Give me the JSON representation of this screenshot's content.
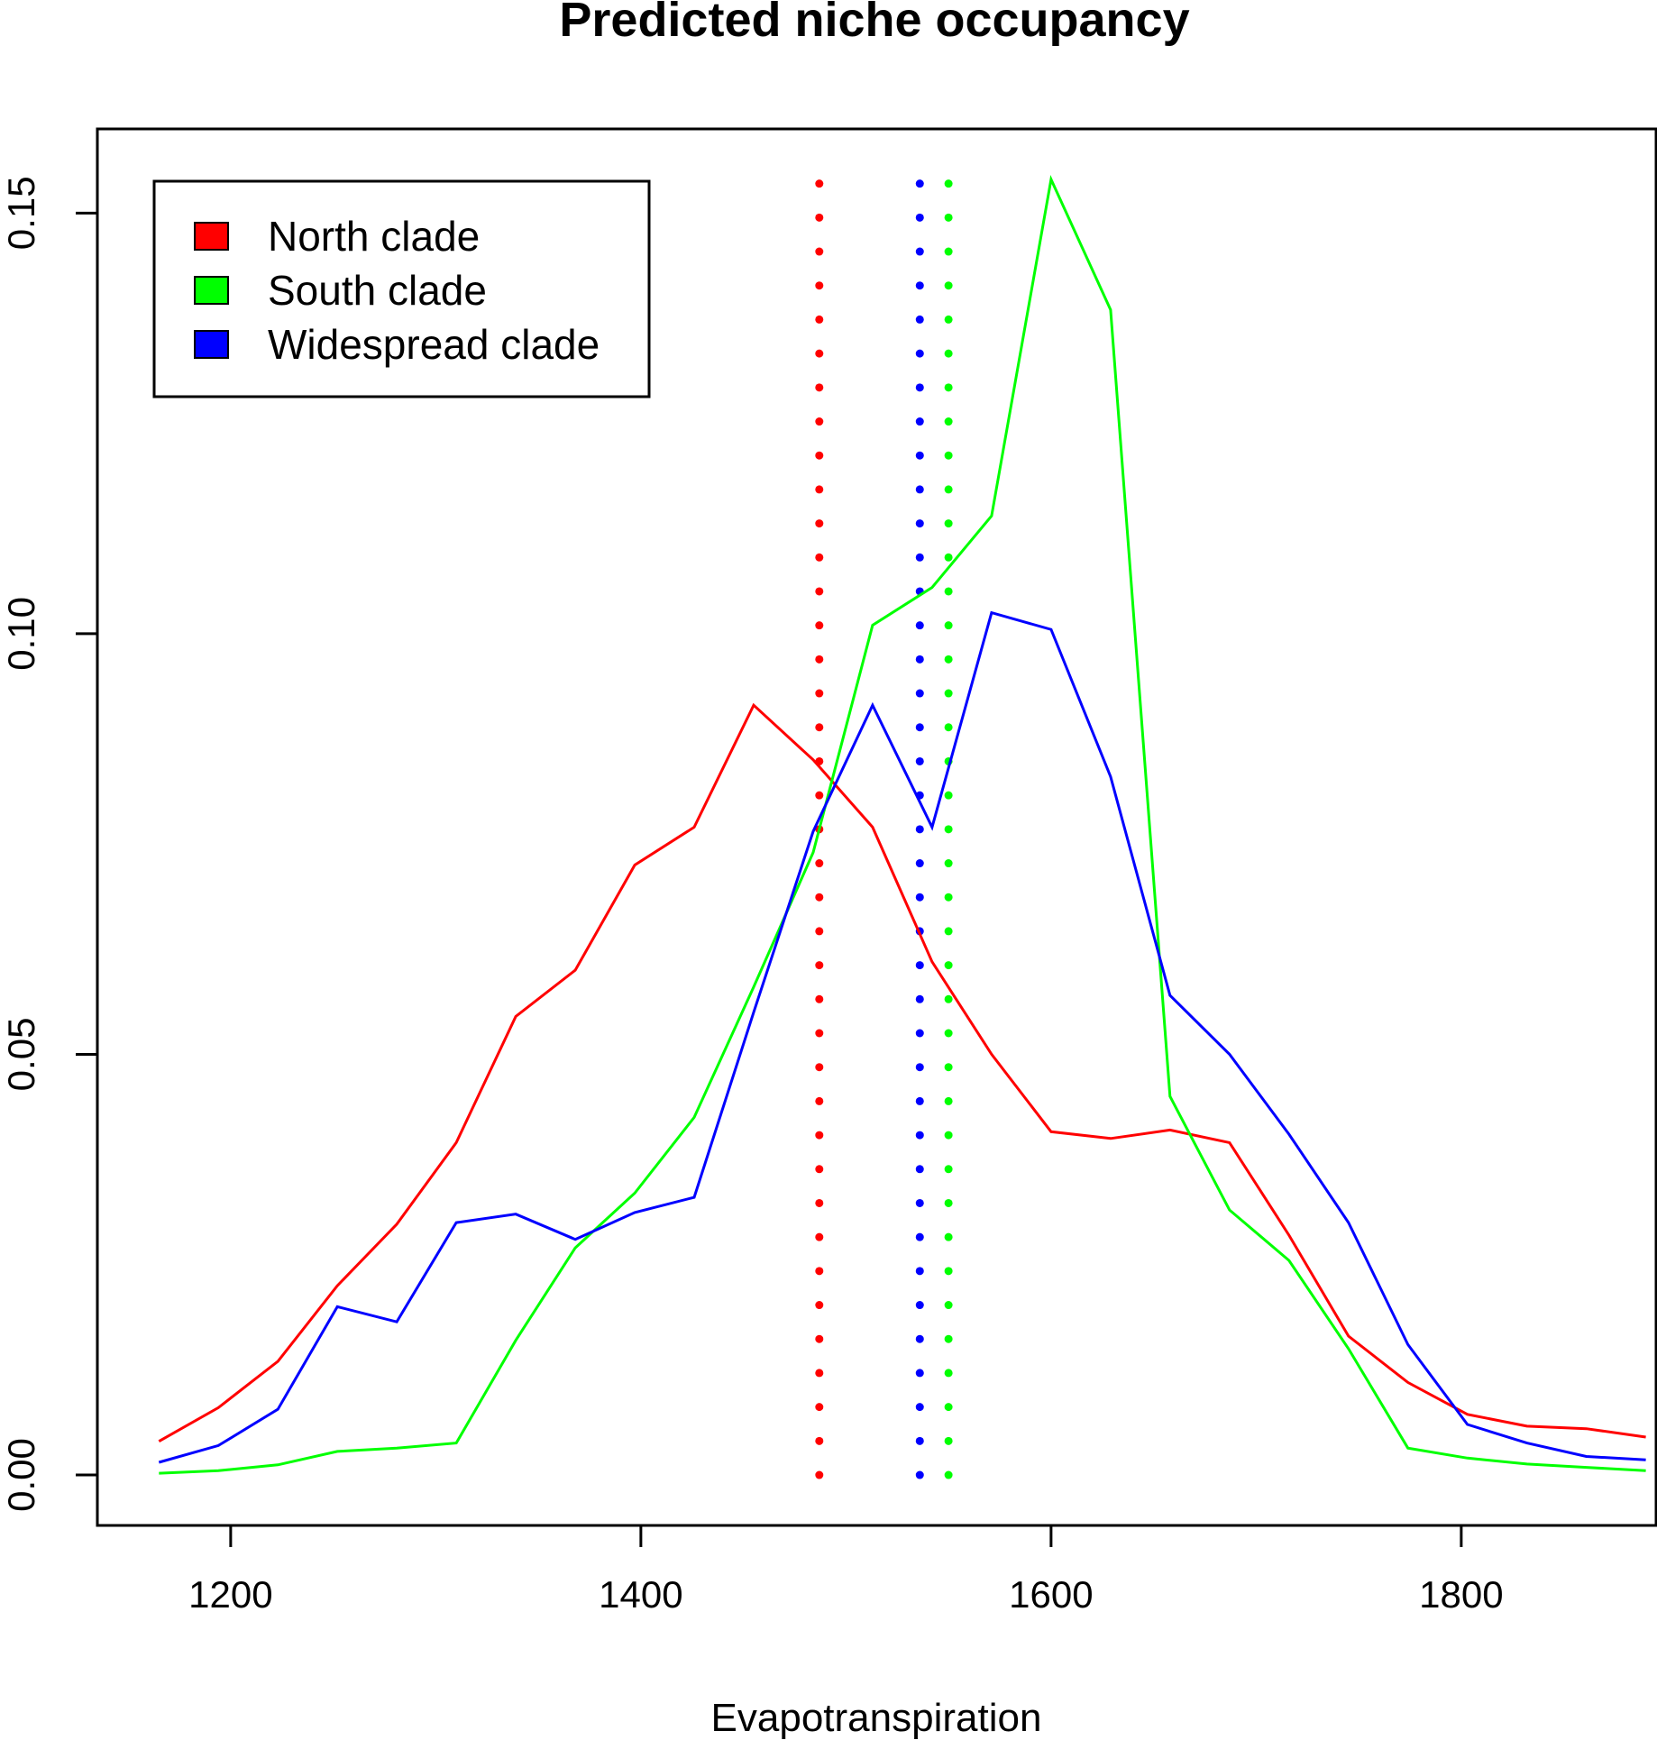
{
  "chart_data": {
    "type": "line",
    "title": "Predicted niche occupancy",
    "xlabel": "Evapotranspiration",
    "ylabel": "",
    "xlim": [
      1135,
      1895
    ],
    "ylim": [
      -0.006,
      0.16
    ],
    "xticks": [
      1200,
      1400,
      1600,
      1800
    ],
    "yticks": [
      0.0,
      0.05,
      0.1,
      0.15
    ],
    "xtick_labels": [
      "1200",
      "1400",
      "1600",
      "1800"
    ],
    "ytick_labels": [
      "0.00",
      "0.05",
      "0.10",
      "0.15"
    ],
    "grid": false,
    "legend_position": "top-left",
    "x": [
      1165,
      1194,
      1223,
      1252,
      1281,
      1310,
      1339,
      1368,
      1397,
      1426,
      1455,
      1484,
      1513,
      1542,
      1571,
      1600,
      1629,
      1658,
      1687,
      1716,
      1745,
      1774,
      1803,
      1832,
      1861,
      1890
    ],
    "series": [
      {
        "name": "North clade",
        "color": "#ff0000",
        "values": [
          0.004,
          0.008,
          0.0135,
          0.0225,
          0.0298,
          0.0395,
          0.0545,
          0.06,
          0.0725,
          0.077,
          0.0915,
          0.085,
          0.077,
          0.061,
          0.05,
          0.0408,
          0.04,
          0.041,
          0.0395,
          0.0285,
          0.0165,
          0.011,
          0.0072,
          0.0058,
          0.0055,
          0.0045
        ]
      },
      {
        "name": "South clade",
        "color": "#00ff00",
        "values": [
          0.0002,
          0.0005,
          0.0012,
          0.0028,
          0.0032,
          0.0038,
          0.016,
          0.027,
          0.0335,
          0.0425,
          0.058,
          0.074,
          0.101,
          0.1055,
          0.114,
          0.154,
          0.1385,
          0.045,
          0.0315,
          0.0255,
          0.015,
          0.0032,
          0.002,
          0.0013,
          0.0009,
          0.0005
        ]
      },
      {
        "name": "Widespread clade",
        "color": "#0000ff",
        "values": [
          0.0015,
          0.0035,
          0.0078,
          0.02,
          0.0182,
          0.03,
          0.031,
          0.028,
          0.0312,
          0.033,
          0.055,
          0.0765,
          0.0915,
          0.077,
          0.1025,
          0.1005,
          0.083,
          0.057,
          0.05,
          0.0405,
          0.03,
          0.0155,
          0.006,
          0.0038,
          0.0022,
          0.0018
        ]
      }
    ],
    "vlines": [
      {
        "series": "North clade",
        "x": 1487,
        "color": "#ff0000",
        "style": "dotted"
      },
      {
        "series": "Widespread clade",
        "x": 1536,
        "color": "#0000ff",
        "style": "dotted"
      },
      {
        "series": "South clade",
        "x": 1550,
        "color": "#00ff00",
        "style": "dotted"
      }
    ],
    "vline_ymax": 0.1535
  }
}
